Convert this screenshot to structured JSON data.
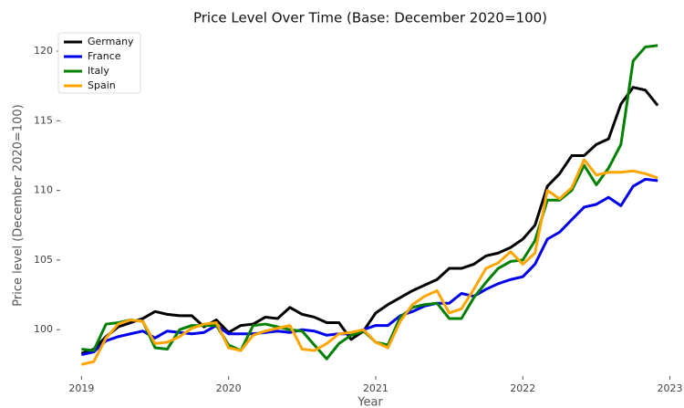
{
  "chart_data": {
    "type": "line",
    "title": "Price Level Over Time (Base: December 2020=100)",
    "x_label": "Year",
    "y_label": "Price level (December 2020=100)",
    "x": [
      2019,
      2019.083,
      2019.167,
      2019.25,
      2019.333,
      2019.417,
      2019.5,
      2019.583,
      2019.667,
      2019.75,
      2019.833,
      2019.917,
      2020,
      2020.083,
      2020.167,
      2020.25,
      2020.333,
      2020.417,
      2020.5,
      2020.583,
      2020.667,
      2020.75,
      2020.833,
      2020.917,
      2021,
      2021.083,
      2021.167,
      2021.25,
      2021.333,
      2021.417,
      2021.5,
      2021.583,
      2021.667,
      2021.75,
      2021.833,
      2021.917,
      2022,
      2022.083,
      2022.167,
      2022.25,
      2022.333,
      2022.417,
      2022.5,
      2022.583,
      2022.667,
      2022.75,
      2022.833,
      2022.917
    ],
    "series": [
      {
        "name": "Germany",
        "color": "#000000",
        "values": [
          98.3,
          98.6,
          99.5,
          100.2,
          100.5,
          100.8,
          101.3,
          101.1,
          101.0,
          101.0,
          100.2,
          100.7,
          99.8,
          100.3,
          100.4,
          100.9,
          100.8,
          101.6,
          101.1,
          100.9,
          100.5,
          100.5,
          99.3,
          99.9,
          101.2,
          101.8,
          102.3,
          102.8,
          103.2,
          103.6,
          104.4,
          104.4,
          104.7,
          105.3,
          105.5,
          105.9,
          106.5,
          107.5,
          110.3,
          111.2,
          112.5,
          112.5,
          113.3,
          113.7,
          116.2,
          117.4,
          117.2,
          116.1
        ]
      },
      {
        "name": "France",
        "color": "#0000ee",
        "values": [
          98.2,
          98.4,
          99.2,
          99.5,
          99.7,
          99.9,
          99.4,
          99.9,
          99.8,
          99.7,
          99.8,
          100.3,
          99.7,
          99.7,
          99.7,
          99.8,
          99.9,
          99.8,
          100.0,
          99.9,
          99.6,
          99.7,
          99.7,
          100.0,
          100.3,
          100.3,
          101.0,
          101.3,
          101.7,
          101.9,
          101.9,
          102.6,
          102.4,
          102.9,
          103.3,
          103.6,
          103.8,
          104.7,
          106.5,
          107.0,
          107.9,
          108.8,
          109.0,
          109.5,
          108.9,
          110.3,
          110.8,
          110.7
        ]
      },
      {
        "name": "Italy",
        "color": "#008000",
        "values": [
          98.6,
          98.5,
          100.4,
          100.5,
          100.7,
          100.6,
          98.7,
          98.6,
          100.0,
          100.3,
          100.3,
          100.3,
          98.9,
          98.5,
          100.3,
          100.4,
          100.2,
          100.0,
          99.9,
          98.9,
          97.9,
          99.0,
          99.6,
          99.9,
          99.1,
          98.9,
          100.9,
          101.6,
          101.8,
          101.9,
          100.8,
          100.8,
          102.3,
          103.4,
          104.4,
          104.9,
          105.0,
          106.4,
          109.3,
          109.3,
          110.0,
          111.8,
          110.4,
          111.6,
          113.3,
          119.3,
          120.3,
          120.4
        ]
      },
      {
        "name": "Spain",
        "color": "#ffa500",
        "values": [
          97.5,
          97.7,
          99.4,
          100.4,
          100.7,
          100.6,
          99.0,
          99.1,
          99.5,
          100.1,
          100.4,
          100.5,
          98.7,
          98.5,
          99.6,
          99.9,
          100.1,
          100.3,
          98.6,
          98.5,
          99.0,
          99.7,
          99.8,
          100.0,
          99.1,
          98.7,
          100.6,
          101.8,
          102.4,
          102.8,
          101.2,
          101.5,
          102.9,
          104.4,
          104.8,
          105.6,
          104.7,
          105.5,
          110.0,
          109.4,
          110.2,
          112.2,
          111.1,
          111.3,
          111.3,
          111.4,
          111.2,
          110.9
        ]
      }
    ],
    "xlim": [
      2018.88,
      2023.04
    ],
    "xticks": [
      2019,
      2020,
      2021,
      2022,
      2023
    ],
    "ylim": [
      96.8,
      121.05
    ],
    "yticks": [
      100,
      105,
      110,
      115,
      120
    ],
    "legend": "upper left"
  }
}
